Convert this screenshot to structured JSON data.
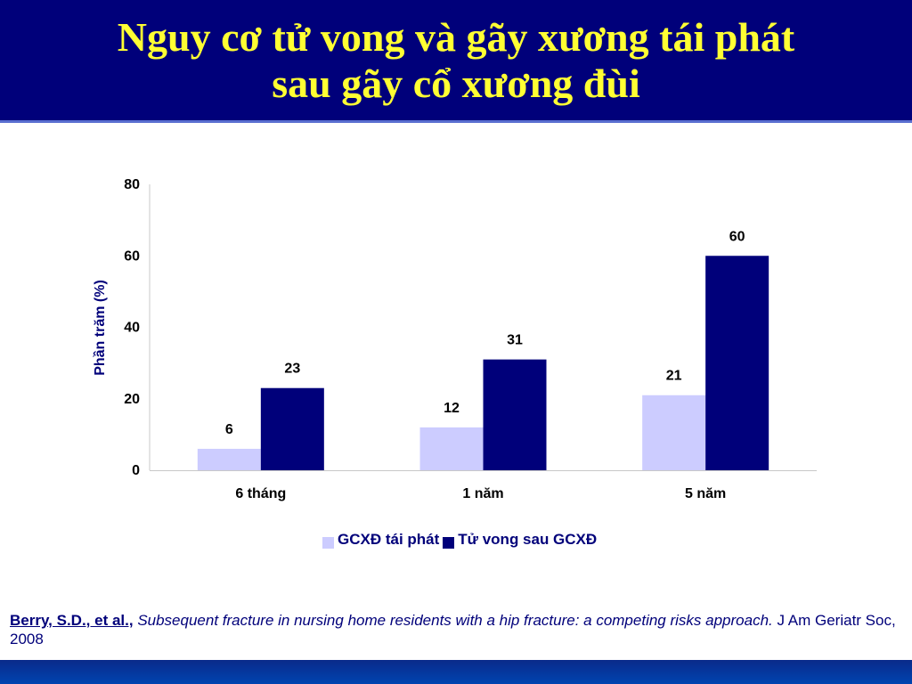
{
  "header": {
    "title_line1": "Nguy cơ tử vong và gãy xương tái phát",
    "title_line2": "sau gãy cổ xương đùi"
  },
  "chart_data": {
    "type": "bar",
    "categories": [
      "6 tháng",
      "1 năm",
      "5 năm"
    ],
    "series": [
      {
        "name": "GCXĐ tái phát",
        "values": [
          6,
          12,
          21
        ],
        "color": "#ccccff"
      },
      {
        "name": "Tử vong sau GCXĐ",
        "values": [
          23,
          31,
          60
        ],
        "color": "#00007a"
      }
    ],
    "ylabel": "Phần trăm (%)",
    "ylim": [
      0,
      80
    ],
    "yticks": [
      0,
      20,
      40,
      60,
      80
    ],
    "grid": false,
    "legend": "bottom",
    "data_labels": true
  },
  "legend": {
    "item1_label": "GCXĐ tái phát",
    "item2_label": "Tử vong sau GCXĐ"
  },
  "reference": {
    "authors": "Berry, S.D., et al.,",
    "title": "Subsequent fracture in nursing home residents with a hip fracture: a competing risks approach.",
    "journal": "J Am Geriatr Soc, 2008"
  }
}
